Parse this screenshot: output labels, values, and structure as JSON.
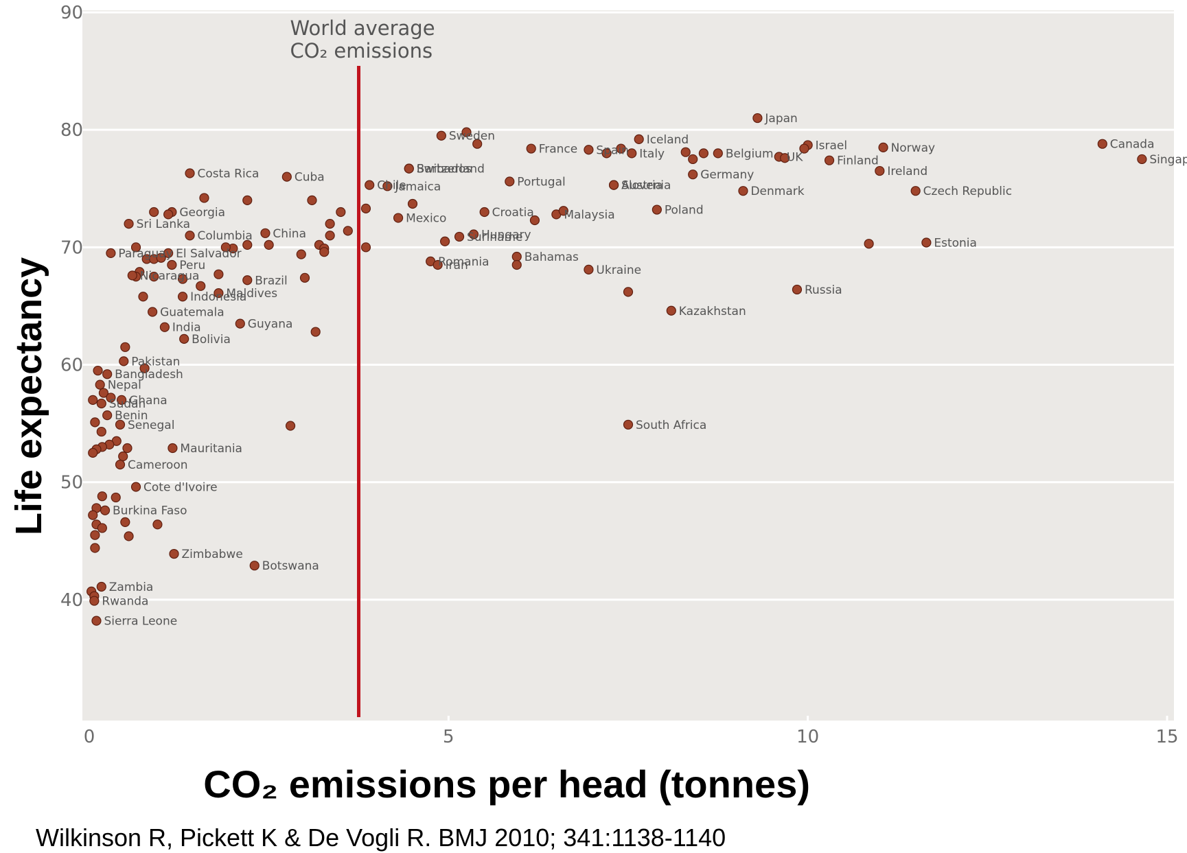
{
  "chart_data": {
    "type": "scatter",
    "xlabel": "CO₂ emissions per head (tonnes)",
    "ylabel": "Life expectancy",
    "xlim": [
      0,
      15
    ],
    "ylim": [
      30,
      90
    ],
    "x_ticks": [
      "0",
      "5",
      "10",
      "15"
    ],
    "y_ticks": [
      "40",
      "50",
      "60",
      "70",
      "80",
      "90"
    ],
    "grid": "horizontal",
    "colors": {
      "marker": "#a0452c",
      "marker_edge": "#5e1f10",
      "reference_line": "#c0141e",
      "plot_bg": "#ebe9e6"
    },
    "reference_line": {
      "x": 3.75,
      "label_line1": "World average",
      "label_line2": "CO₂ emissions"
    },
    "points": [
      {
        "label": "Japan",
        "x": 9.3,
        "y": 81.0
      },
      {
        "label": "Sweden",
        "x": 4.9,
        "y": 79.5
      },
      {
        "label": "",
        "x": 5.25,
        "y": 79.8
      },
      {
        "label": "",
        "x": 5.4,
        "y": 78.8
      },
      {
        "label": "Iceland",
        "x": 7.65,
        "y": 79.2
      },
      {
        "label": "Spain",
        "x": 6.95,
        "y": 78.3
      },
      {
        "label": "",
        "x": 7.2,
        "y": 78.0
      },
      {
        "label": "",
        "x": 7.4,
        "y": 78.4
      },
      {
        "label": "Italy",
        "x": 7.55,
        "y": 78.0
      },
      {
        "label": "France",
        "x": 6.15,
        "y": 78.4
      },
      {
        "label": "Switzerland",
        "x": 4.45,
        "y": 76.7
      },
      {
        "label": "Barbados",
        "x": 4.45,
        "y": 76.7
      },
      {
        "label": "Belgium",
        "x": 8.75,
        "y": 78.0
      },
      {
        "label": "",
        "x": 8.3,
        "y": 78.1
      },
      {
        "label": "",
        "x": 8.55,
        "y": 78.0
      },
      {
        "label": "",
        "x": 8.4,
        "y": 77.5
      },
      {
        "label": "Germany",
        "x": 8.4,
        "y": 76.2
      },
      {
        "label": "Israel",
        "x": 10.0,
        "y": 78.7
      },
      {
        "label": "",
        "x": 9.95,
        "y": 78.4
      },
      {
        "label": "UK",
        "x": 9.6,
        "y": 77.7
      },
      {
        "label": "",
        "x": 9.68,
        "y": 77.6
      },
      {
        "label": "Finland",
        "x": 10.3,
        "y": 77.4
      },
      {
        "label": "Norway",
        "x": 11.05,
        "y": 78.5
      },
      {
        "label": "Canada",
        "x": 14.1,
        "y": 78.8
      },
      {
        "label": "Singapore",
        "x": 14.65,
        "y": 77.5
      },
      {
        "label": "Ireland",
        "x": 11.0,
        "y": 76.5
      },
      {
        "label": "Czech Republic",
        "x": 11.5,
        "y": 74.8
      },
      {
        "label": "Austria",
        "x": 7.3,
        "y": 75.3
      },
      {
        "label": "Slovenia",
        "x": 7.3,
        "y": 75.3
      },
      {
        "label": "Portugal",
        "x": 5.85,
        "y": 75.6
      },
      {
        "label": "Denmark",
        "x": 9.1,
        "y": 74.8
      },
      {
        "label": "Croatia",
        "x": 5.5,
        "y": 73.0
      },
      {
        "label": "Malaysia",
        "x": 6.5,
        "y": 72.8
      },
      {
        "label": "",
        "x": 6.6,
        "y": 73.1
      },
      {
        "label": "",
        "x": 6.2,
        "y": 72.3
      },
      {
        "label": "Poland",
        "x": 7.9,
        "y": 73.2
      },
      {
        "label": "Chile",
        "x": 3.9,
        "y": 75.3
      },
      {
        "label": "Jamaica",
        "x": 4.15,
        "y": 75.2
      },
      {
        "label": "Mexico",
        "x": 4.3,
        "y": 72.5
      },
      {
        "label": "",
        "x": 4.5,
        "y": 73.7
      },
      {
        "label": "Suriname",
        "x": 5.15,
        "y": 70.9
      },
      {
        "label": "Hungary",
        "x": 5.35,
        "y": 71.1
      },
      {
        "label": "",
        "x": 4.95,
        "y": 70.5
      },
      {
        "label": "Romania",
        "x": 4.75,
        "y": 68.8
      },
      {
        "label": "Iran",
        "x": 4.85,
        "y": 68.5
      },
      {
        "label": "Bahamas",
        "x": 5.95,
        "y": 69.2
      },
      {
        "label": "",
        "x": 5.95,
        "y": 68.5
      },
      {
        "label": "Ukraine",
        "x": 6.95,
        "y": 68.1
      },
      {
        "label": "Estonia",
        "x": 11.65,
        "y": 70.4
      },
      {
        "label": "",
        "x": 10.85,
        "y": 70.3
      },
      {
        "label": "Russia",
        "x": 9.85,
        "y": 66.4
      },
      {
        "label": "",
        "x": 7.5,
        "y": 66.2
      },
      {
        "label": "Kazakhstan",
        "x": 8.1,
        "y": 64.6
      },
      {
        "label": "South Africa",
        "x": 7.5,
        "y": 54.9
      },
      {
        "label": "",
        "x": 3.85,
        "y": 73.3
      },
      {
        "label": "",
        "x": 3.85,
        "y": 70.0
      },
      {
        "label": "Costa Rica",
        "x": 1.4,
        "y": 76.3
      },
      {
        "label": "Cuba",
        "x": 2.75,
        "y": 76.0
      },
      {
        "label": "Paraguay",
        "x": 0.3,
        "y": 69.5
      },
      {
        "label": "Georgia",
        "x": 1.15,
        "y": 73.0
      },
      {
        "label": "",
        "x": 1.1,
        "y": 72.8
      },
      {
        "label": "",
        "x": 0.9,
        "y": 73.0
      },
      {
        "label": "",
        "x": 1.6,
        "y": 74.2
      },
      {
        "label": "",
        "x": 2.2,
        "y": 74.0
      },
      {
        "label": "Sri Lanka",
        "x": 0.55,
        "y": 72.0
      },
      {
        "label": "Columbia",
        "x": 1.4,
        "y": 71.0
      },
      {
        "label": "",
        "x": 0.65,
        "y": 70.0
      },
      {
        "label": "China",
        "x": 2.45,
        "y": 71.2
      },
      {
        "label": "",
        "x": 2.5,
        "y": 70.2
      },
      {
        "label": "",
        "x": 2.2,
        "y": 70.2
      },
      {
        "label": "",
        "x": 2.0,
        "y": 69.9
      },
      {
        "label": "",
        "x": 1.9,
        "y": 70.0
      },
      {
        "label": "El Salvador",
        "x": 1.1,
        "y": 69.5
      },
      {
        "label": "",
        "x": 0.8,
        "y": 69.0
      },
      {
        "label": "",
        "x": 0.9,
        "y": 69.0
      },
      {
        "label": "",
        "x": 1.0,
        "y": 69.1
      },
      {
        "label": "Peru",
        "x": 1.15,
        "y": 68.5
      },
      {
        "label": "",
        "x": 0.7,
        "y": 67.9
      },
      {
        "label": "",
        "x": 0.65,
        "y": 67.5
      },
      {
        "label": "",
        "x": 0.9,
        "y": 67.5
      },
      {
        "label": "",
        "x": 1.3,
        "y": 67.3
      },
      {
        "label": "",
        "x": 1.8,
        "y": 67.7
      },
      {
        "label": "Brazil",
        "x": 2.2,
        "y": 67.2
      },
      {
        "label": "",
        "x": 1.55,
        "y": 66.7
      },
      {
        "label": "Maldives",
        "x": 1.8,
        "y": 66.1
      },
      {
        "label": "Indonesia",
        "x": 1.3,
        "y": 65.8
      },
      {
        "label": "",
        "x": 0.75,
        "y": 65.8
      },
      {
        "label": "Nicaragua",
        "x": 0.6,
        "y": 67.6
      },
      {
        "label": "Guatemala",
        "x": 0.88,
        "y": 64.5
      },
      {
        "label": "India",
        "x": 1.05,
        "y": 63.2
      },
      {
        "label": "Guyana",
        "x": 2.1,
        "y": 63.5
      },
      {
        "label": "Bolivia",
        "x": 1.32,
        "y": 62.2
      },
      {
        "label": "",
        "x": 3.1,
        "y": 74.0
      },
      {
        "label": "",
        "x": 3.5,
        "y": 73.0
      },
      {
        "label": "",
        "x": 3.35,
        "y": 72.0
      },
      {
        "label": "",
        "x": 3.6,
        "y": 71.4
      },
      {
        "label": "",
        "x": 3.35,
        "y": 71.0
      },
      {
        "label": "",
        "x": 3.2,
        "y": 70.2
      },
      {
        "label": "",
        "x": 3.27,
        "y": 69.9
      },
      {
        "label": "",
        "x": 3.27,
        "y": 69.6
      },
      {
        "label": "",
        "x": 2.95,
        "y": 69.4
      },
      {
        "label": "",
        "x": 3.0,
        "y": 67.4
      },
      {
        "label": "",
        "x": 3.15,
        "y": 62.8
      },
      {
        "label": "",
        "x": 0.5,
        "y": 61.5
      },
      {
        "label": "Pakistan",
        "x": 0.48,
        "y": 60.3
      },
      {
        "label": "",
        "x": 0.77,
        "y": 59.7
      },
      {
        "label": "Bangladesh",
        "x": 0.25,
        "y": 59.2
      },
      {
        "label": "",
        "x": 0.12,
        "y": 59.5
      },
      {
        "label": "Nepal",
        "x": 0.15,
        "y": 58.3
      },
      {
        "label": "",
        "x": 0.2,
        "y": 57.6
      },
      {
        "label": "Ghana",
        "x": 0.45,
        "y": 57.0
      },
      {
        "label": "",
        "x": 0.3,
        "y": 57.2
      },
      {
        "label": "Sudan",
        "x": 0.17,
        "y": 56.7
      },
      {
        "label": "",
        "x": 0.05,
        "y": 57.0
      },
      {
        "label": "Benin",
        "x": 0.25,
        "y": 55.7
      },
      {
        "label": "Senegal",
        "x": 0.43,
        "y": 54.9
      },
      {
        "label": "",
        "x": 2.8,
        "y": 54.8
      },
      {
        "label": "",
        "x": 0.08,
        "y": 55.1
      },
      {
        "label": "",
        "x": 0.17,
        "y": 54.3
      },
      {
        "label": "",
        "x": 0.38,
        "y": 53.5
      },
      {
        "label": "",
        "x": 0.28,
        "y": 53.2
      },
      {
        "label": "",
        "x": 0.53,
        "y": 52.9
      },
      {
        "label": "",
        "x": 0.18,
        "y": 53.0
      },
      {
        "label": "",
        "x": 0.1,
        "y": 52.8
      },
      {
        "label": "",
        "x": 0.05,
        "y": 52.5
      },
      {
        "label": "Mauritania",
        "x": 1.16,
        "y": 52.9
      },
      {
        "label": "",
        "x": 0.47,
        "y": 52.2
      },
      {
        "label": "Cameroon",
        "x": 0.43,
        "y": 51.5
      },
      {
        "label": "Cote d'Ivoire",
        "x": 0.65,
        "y": 49.6
      },
      {
        "label": "",
        "x": 0.18,
        "y": 48.8
      },
      {
        "label": "",
        "x": 0.37,
        "y": 48.7
      },
      {
        "label": "Burkina Faso",
        "x": 0.22,
        "y": 47.6
      },
      {
        "label": "",
        "x": 0.1,
        "y": 47.8
      },
      {
        "label": "",
        "x": 0.05,
        "y": 47.2
      },
      {
        "label": "",
        "x": 0.1,
        "y": 46.4
      },
      {
        "label": "",
        "x": 0.18,
        "y": 46.1
      },
      {
        "label": "",
        "x": 0.5,
        "y": 46.6
      },
      {
        "label": "",
        "x": 0.95,
        "y": 46.4
      },
      {
        "label": "",
        "x": 0.08,
        "y": 45.5
      },
      {
        "label": "",
        "x": 0.55,
        "y": 45.4
      },
      {
        "label": "",
        "x": 0.08,
        "y": 44.4
      },
      {
        "label": "Zimbabwe",
        "x": 1.18,
        "y": 43.9
      },
      {
        "label": "Botswana",
        "x": 2.3,
        "y": 42.9
      },
      {
        "label": "Zambia",
        "x": 0.17,
        "y": 41.1
      },
      {
        "label": "",
        "x": 0.03,
        "y": 40.7
      },
      {
        "label": "",
        "x": 0.07,
        "y": 40.3
      },
      {
        "label": "Rwanda",
        "x": 0.07,
        "y": 39.9
      },
      {
        "label": "Sierra Leone",
        "x": 0.1,
        "y": 38.2
      }
    ]
  },
  "caption": "Wilkinson R, Pickett K & De Vogli R. BMJ 2010; 341:1138-1140"
}
